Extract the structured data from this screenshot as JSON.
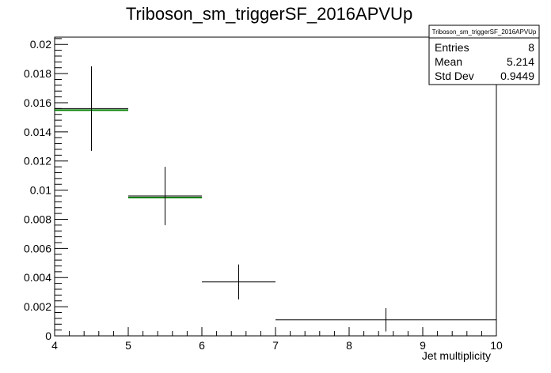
{
  "chart_data": {
    "type": "histogram",
    "title": "Triboson_sm_triggerSF_2016APVUp",
    "xlabel": "Jet multiplicity",
    "ylabel": "",
    "xlim": [
      4,
      10
    ],
    "ylim": [
      0,
      0.0205
    ],
    "x_ticks": [
      "4",
      "5",
      "6",
      "7",
      "8",
      "9",
      "10"
    ],
    "y_ticks": [
      "0",
      "0.002",
      "0.004",
      "0.006",
      "0.008",
      "0.01",
      "0.012",
      "0.014",
      "0.016",
      "0.018",
      "0.02"
    ],
    "bins": [
      {
        "x_low": 4,
        "x_high": 5,
        "value": 0.0156,
        "err": 0.0029
      },
      {
        "x_low": 5,
        "x_high": 6,
        "value": 0.0096,
        "err": 0.002
      },
      {
        "x_low": 6,
        "x_high": 7,
        "value": 0.0037,
        "err": 0.0012
      },
      {
        "x_low": 7,
        "x_high": 10,
        "value": 0.0011,
        "err": 0.0008
      }
    ],
    "overlay_color": "#008000",
    "overlay_bins": [
      0,
      1
    ],
    "stats_box": {
      "title": "Triboson_sm_triggerSF_2016APVUp",
      "rows": [
        {
          "label": "Entries",
          "value": "8"
        },
        {
          "label": "Mean",
          "value": "5.214"
        },
        {
          "label": "Std Dev",
          "value": "0.9449"
        }
      ]
    }
  }
}
